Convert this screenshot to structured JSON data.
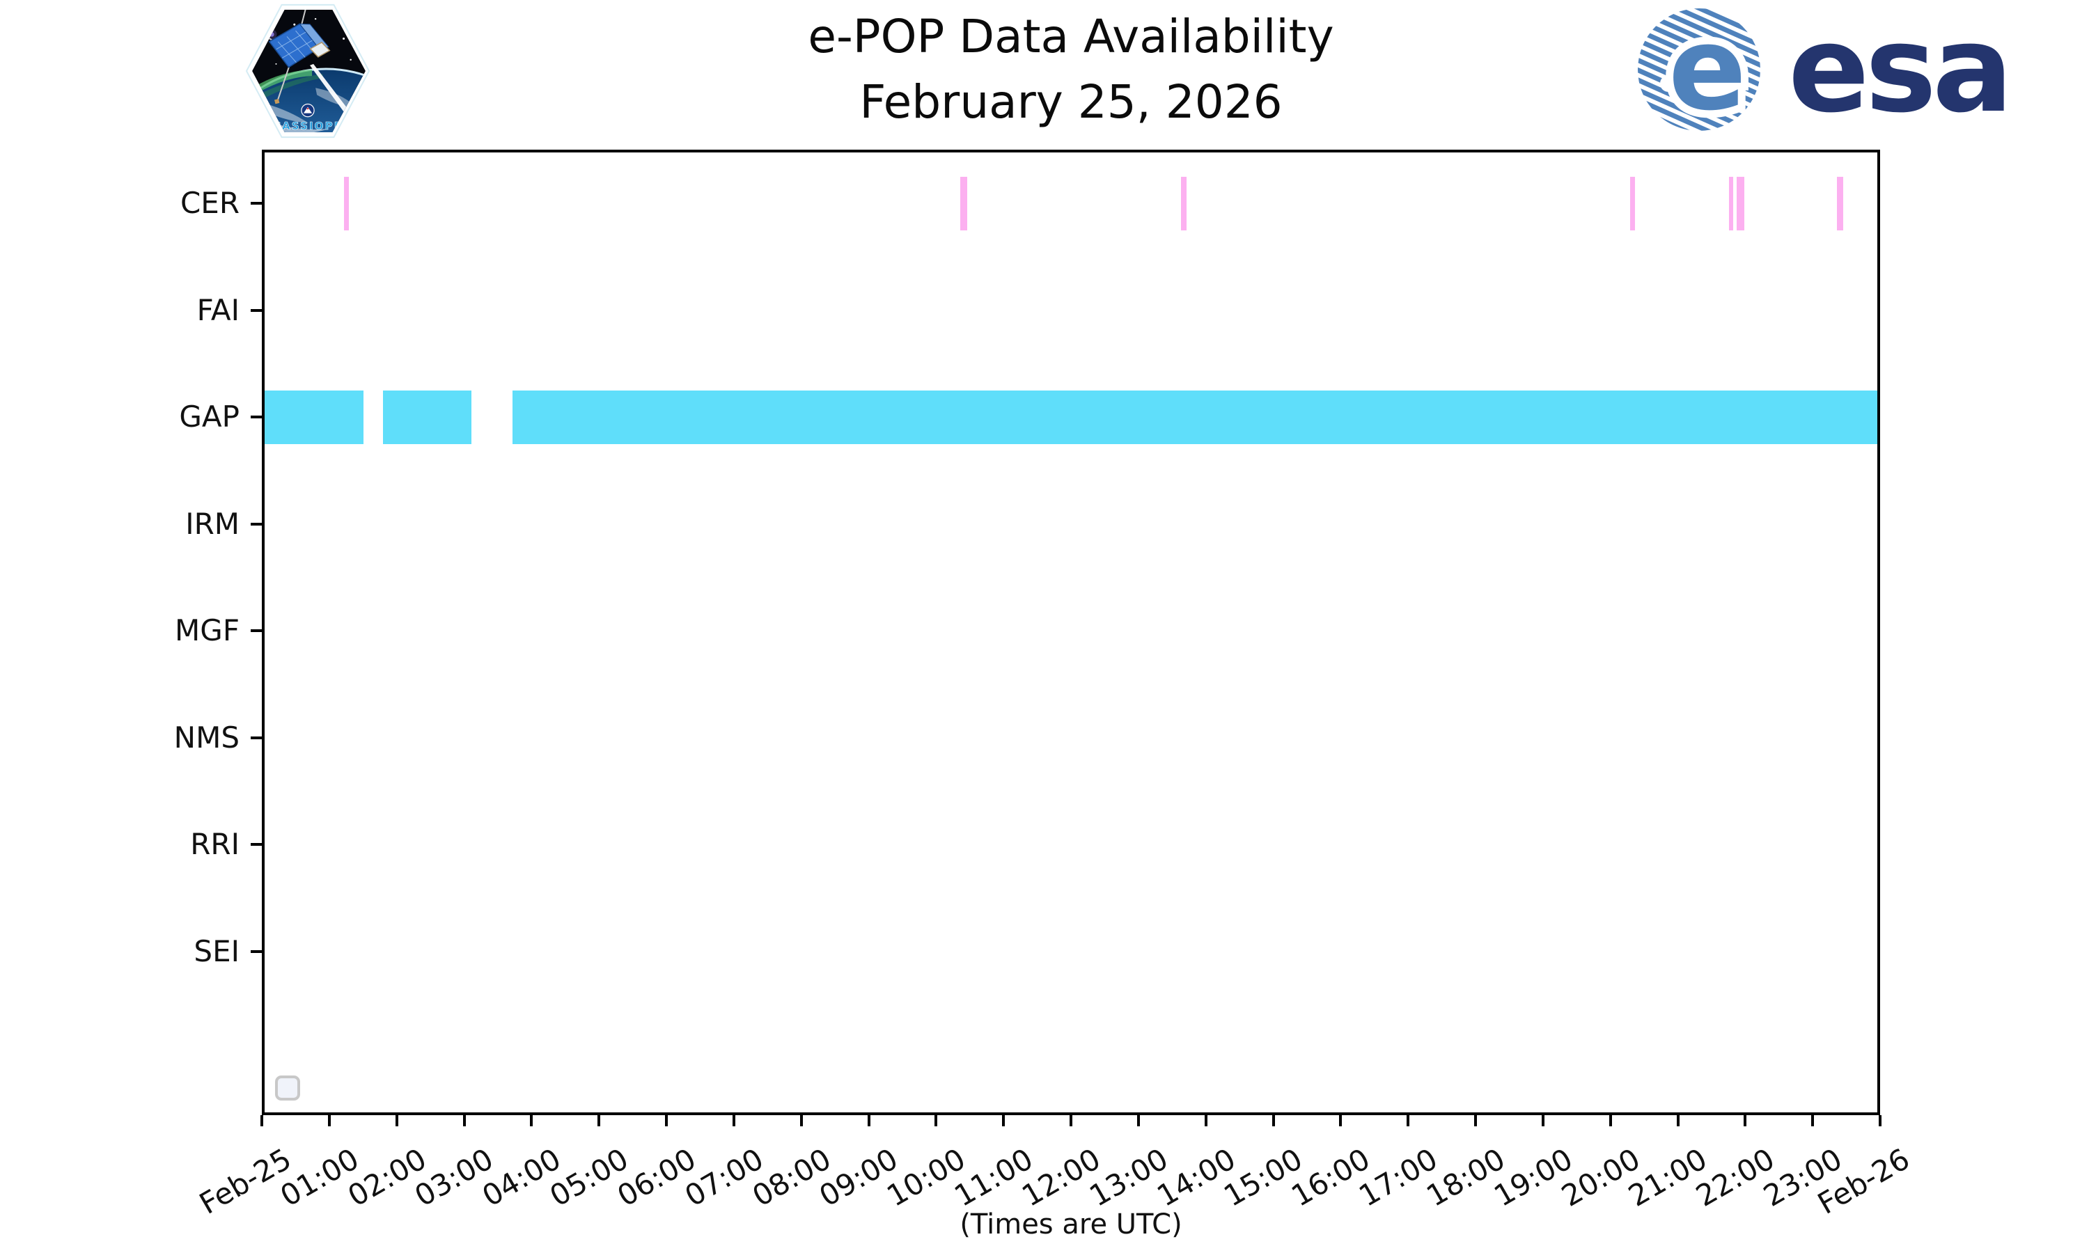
{
  "header": {
    "title_line1": "e-POP Data Availability",
    "title_line2": "February 25, 2026",
    "cassiope_logo_label": "CASSIOPE",
    "esa_logo_e": "e",
    "esa_logo_text": "esa"
  },
  "chart_data": {
    "type": "timeline",
    "title": "e-POP Data Availability",
    "subtitle": "February 25, 2026",
    "xlabel": "(Times are UTC)",
    "x_range_hours": [
      0,
      24
    ],
    "x_ticks": [
      "Feb-25",
      "01:00",
      "02:00",
      "03:00",
      "04:00",
      "05:00",
      "06:00",
      "07:00",
      "08:00",
      "09:00",
      "10:00",
      "11:00",
      "12:00",
      "13:00",
      "14:00",
      "15:00",
      "16:00",
      "17:00",
      "18:00",
      "19:00",
      "20:00",
      "21:00",
      "22:00",
      "23:00",
      "Feb-26"
    ],
    "rows": [
      "CER",
      "FAI",
      "GAP",
      "IRM",
      "MGF",
      "NMS",
      "RRI",
      "SEI"
    ],
    "series": [
      {
        "row": "CER",
        "color": "#FCB0F0",
        "intervals": [
          {
            "start": "01:13",
            "end": "01:17",
            "start_h": 1.215,
            "end_h": 1.287
          },
          {
            "start": "10:21",
            "end": "10:27",
            "start_h": 10.355,
            "end_h": 10.458
          },
          {
            "start": "13:38",
            "end": "13:43",
            "start_h": 13.635,
            "end_h": 13.712
          },
          {
            "start": "20:17",
            "end": "20:22",
            "start_h": 20.29,
            "end_h": 20.362
          },
          {
            "start": "21:45",
            "end": "21:49",
            "start_h": 21.755,
            "end_h": 21.82
          },
          {
            "start": "21:52",
            "end": "21:59",
            "start_h": 21.875,
            "end_h": 21.985
          },
          {
            "start": "23:22",
            "end": "23:27",
            "start_h": 23.36,
            "end_h": 23.45
          }
        ]
      },
      {
        "row": "GAP",
        "color": "#5FDEFA",
        "intervals": [
          {
            "start": "00:00",
            "end": "01:30",
            "start_h": 0.0,
            "end_h": 1.507
          },
          {
            "start": "01:48",
            "end": "03:06",
            "start_h": 1.797,
            "end_h": 3.108
          },
          {
            "start": "03:43",
            "end": "24:00",
            "start_h": 3.715,
            "end_h": 24.0
          }
        ]
      }
    ],
    "legend": {
      "entries": [],
      "empty_box_shown": true
    },
    "grid": false,
    "colors": {
      "axis": "#000000",
      "legend_border": "#C8C8C8"
    }
  }
}
